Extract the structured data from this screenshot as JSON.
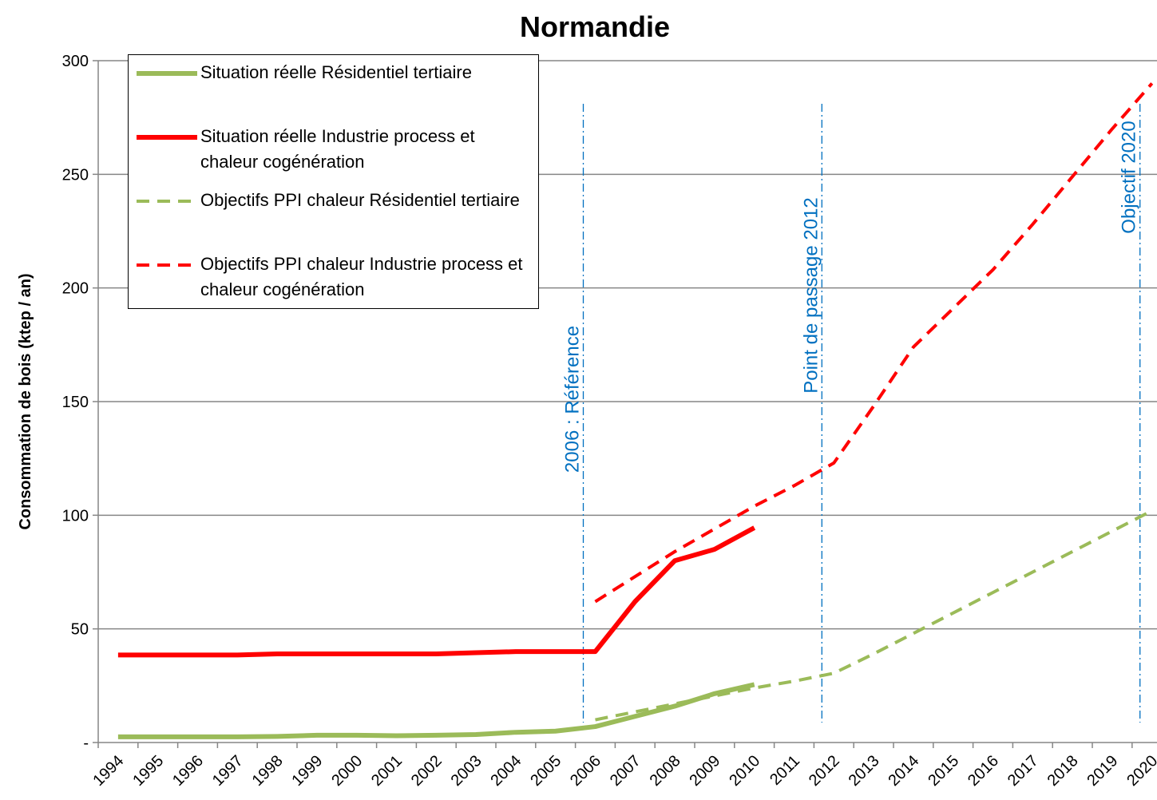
{
  "chart_data": {
    "type": "line",
    "title": "Normandie",
    "y_label": "Consommation de bois (ktep / an)",
    "categories": [
      "1994",
      "1995",
      "1996",
      "1997",
      "1998",
      "1999",
      "2000",
      "2001",
      "2002",
      "2003",
      "2004",
      "2005",
      "2006",
      "2007",
      "2008",
      "2009",
      "2010",
      "2011",
      "2012",
      "2013",
      "2014",
      "2015",
      "2016",
      "2017",
      "2018",
      "2019",
      "2020"
    ],
    "ylim": [
      0,
      300
    ],
    "yticks": [
      {
        "value": 0,
        "label": "-"
      },
      50,
      100,
      150,
      200,
      250,
      300
    ],
    "grid": true,
    "series": [
      {
        "name": "Situation réelle  Résidentiel tertiaire",
        "color": "#9bbb59",
        "dash": false,
        "values": [
          2.5,
          2.5,
          2.5,
          2.5,
          2.7,
          3.2,
          3.2,
          3,
          3.2,
          3.5,
          4.5,
          5,
          7,
          11.5,
          16,
          21.5,
          25.5,
          null,
          null,
          null,
          null,
          null,
          null,
          null,
          null,
          null,
          null
        ]
      },
      {
        "name": "Situation réelle  Industrie process et chaleur cogénération",
        "color": "#ff0000",
        "dash": false,
        "values": [
          38.5,
          38.5,
          38.5,
          38.5,
          39,
          39,
          39,
          39,
          39,
          39.5,
          40,
          40,
          40,
          62,
          80,
          85,
          94.5,
          null,
          null,
          null,
          null,
          null,
          null,
          null,
          null,
          null,
          null
        ]
      },
      {
        "name": "Objectifs PPI chaleur Résidentiel tertiaire",
        "color": "#9bbb59",
        "dash": true,
        "values": [
          null,
          null,
          null,
          null,
          null,
          null,
          null,
          null,
          null,
          null,
          null,
          null,
          10,
          13.5,
          17,
          20.5,
          24,
          27,
          30.5,
          39,
          48,
          57,
          66,
          75,
          84,
          93,
          102
        ]
      },
      {
        "name": "Objectifs PPI chaleur Industrie process et chaleur cogénération",
        "color": "#ff0000",
        "dash": true,
        "values": [
          null,
          null,
          null,
          null,
          null,
          null,
          null,
          null,
          null,
          null,
          null,
          null,
          62,
          73,
          84,
          94,
          104,
          113,
          123,
          148,
          174,
          191,
          208,
          228,
          249,
          270,
          290
        ]
      }
    ],
    "annotations": [
      {
        "text": "2006 : Référence",
        "x": "2006"
      },
      {
        "text": "Point de passage 2012",
        "x": "2012"
      },
      {
        "text": "Objectif 2020",
        "x": "2020"
      }
    ]
  }
}
